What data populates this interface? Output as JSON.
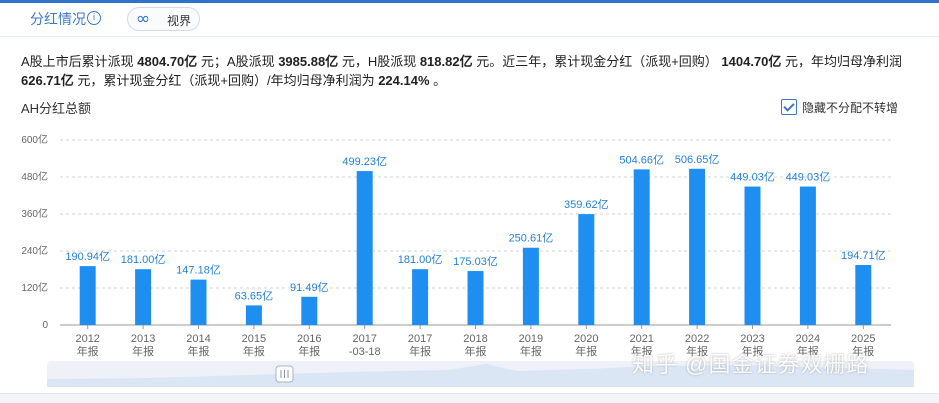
{
  "header": {
    "tab_title": "分红情况",
    "info_icon": "i",
    "view_icon": "∞",
    "view_label": "视界"
  },
  "summary": {
    "p1": "A股上市后累计派现 ",
    "v1": "4804.70亿",
    "p2": " 元；A股派现 ",
    "v2": "3985.88亿",
    "p3": " 元，H股派现 ",
    "v3": "818.82亿",
    "p4": " 元。近三年，累计现金分红（派现+回购） ",
    "v4": "1404.70亿",
    "p5": " 元，年均归母净利润 ",
    "v5": "626.71亿",
    "p6": " 元，累计现金分红（派现+回购）/年均归母净利润为 ",
    "v6": "224.14%",
    "p7": " 。"
  },
  "chart_label": "AH分红总额",
  "hide_checkbox": {
    "label": "隐藏不分配不转增",
    "checked": true
  },
  "watermark": "知乎 @国金证券双栅路",
  "colors": {
    "bar": "#1f8ef1",
    "label": "#2680d9",
    "accent": "#2d73c9",
    "grid": "#d0d3d8"
  },
  "chart_data": {
    "type": "bar",
    "title": "AH分红总额",
    "categories": [
      [
        "2012",
        "年报"
      ],
      [
        "2013",
        "年报"
      ],
      [
        "2014",
        "年报"
      ],
      [
        "2015",
        "年报"
      ],
      [
        "2016",
        "年报"
      ],
      [
        "2017",
        "-03-18"
      ],
      [
        "2017",
        "年报"
      ],
      [
        "2018",
        "年报"
      ],
      [
        "2019",
        "年报"
      ],
      [
        "2020",
        "年报"
      ],
      [
        "2021",
        "年报"
      ],
      [
        "2022",
        "年报"
      ],
      [
        "2023",
        "年报"
      ],
      [
        "2024",
        "年报"
      ],
      [
        "2025",
        "年报"
      ]
    ],
    "values": [
      190.94,
      181.0,
      147.18,
      63.65,
      91.49,
      499.23,
      181.0,
      175.03,
      250.61,
      359.62,
      504.66,
      506.65,
      449.03,
      449.03,
      194.71
    ],
    "value_labels": [
      "190.94亿",
      "181.00亿",
      "147.18亿",
      "63.65亿",
      "91.49亿",
      "499.23亿",
      "181.00亿",
      "175.03亿",
      "250.61亿",
      "359.62亿",
      "504.66亿",
      "506.65亿",
      "449.03亿",
      "449.03亿",
      "194.71亿"
    ],
    "yticks": [
      "0",
      "120亿",
      "240亿",
      "360亿",
      "480亿",
      "600亿"
    ],
    "ylim": [
      0,
      600
    ],
    "grid": true
  }
}
